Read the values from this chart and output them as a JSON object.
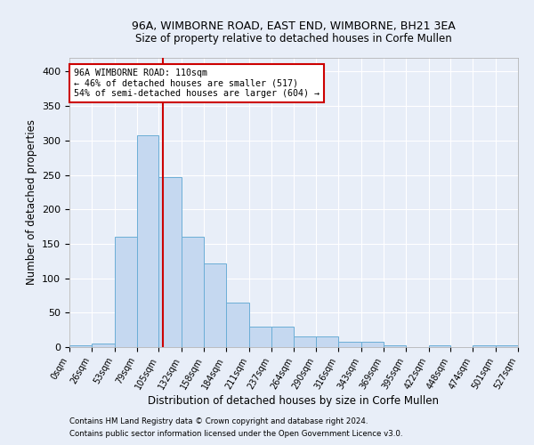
{
  "title1": "96A, WIMBORNE ROAD, EAST END, WIMBORNE, BH21 3EA",
  "title2": "Size of property relative to detached houses in Corfe Mullen",
  "xlabel": "Distribution of detached houses by size in Corfe Mullen",
  "ylabel": "Number of detached properties",
  "footnote1": "Contains HM Land Registry data © Crown copyright and database right 2024.",
  "footnote2": "Contains public sector information licensed under the Open Government Licence v3.0.",
  "bin_edges": [
    0,
    26,
    53,
    79,
    105,
    132,
    158,
    184,
    211,
    237,
    264,
    290,
    316,
    343,
    369,
    395,
    422,
    448,
    474,
    501,
    527
  ],
  "bar_heights": [
    3,
    5,
    160,
    307,
    247,
    160,
    121,
    64,
    30,
    30,
    15,
    15,
    8,
    8,
    3,
    0,
    3,
    0,
    3,
    3
  ],
  "bar_color": "#c5d8f0",
  "bar_edge_color": "#6baed6",
  "property_size": 110,
  "red_line_color": "#cc0000",
  "annotation_text": "96A WIMBORNE ROAD: 110sqm\n← 46% of detached houses are smaller (517)\n54% of semi-detached houses are larger (604) →",
  "annotation_box_color": "#ffffff",
  "annotation_box_edge": "#cc0000",
  "background_color": "#e8eef8",
  "grid_color": "#ffffff",
  "ylim": [
    0,
    420
  ],
  "yticks": [
    0,
    50,
    100,
    150,
    200,
    250,
    300,
    350,
    400
  ]
}
